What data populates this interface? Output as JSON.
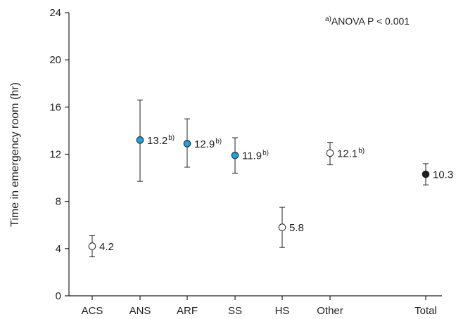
{
  "chart_data": {
    "type": "scatter",
    "ylabel": "Time in emergency room (hr)",
    "xlabel": "",
    "ylim": [
      0,
      24
    ],
    "yticks": [
      0,
      4,
      8,
      12,
      16,
      20,
      24
    ],
    "grid": false,
    "legend": "none",
    "categories": [
      "ACS",
      "ANS",
      "ARF",
      "SS",
      "HS",
      "Other",
      "Total"
    ],
    "values": [
      4.2,
      13.2,
      12.9,
      11.9,
      5.8,
      12.1,
      10.3
    ],
    "error_low": [
      3.3,
      9.7,
      10.9,
      10.4,
      4.1,
      11.1,
      9.4
    ],
    "error_high": [
      5.1,
      16.6,
      15.0,
      13.4,
      7.5,
      13.0,
      11.2
    ],
    "data_labels": [
      "4.2",
      "13.2",
      "12.9",
      "11.9",
      "5.8",
      "12.1",
      "10.3"
    ],
    "label_superscripts": [
      "",
      "b)",
      "b)",
      "b)",
      "",
      "b)",
      ""
    ],
    "marker_style": [
      "open",
      "blue",
      "blue",
      "blue",
      "open",
      "open",
      "filled"
    ],
    "annotation": {
      "superscript": "a)",
      "text": "ANOVA P < 0.001"
    }
  },
  "colors": {
    "axis": "#231f20",
    "blue": "#1ea0d9",
    "filled": "#231f20",
    "open": "#ffffff"
  }
}
